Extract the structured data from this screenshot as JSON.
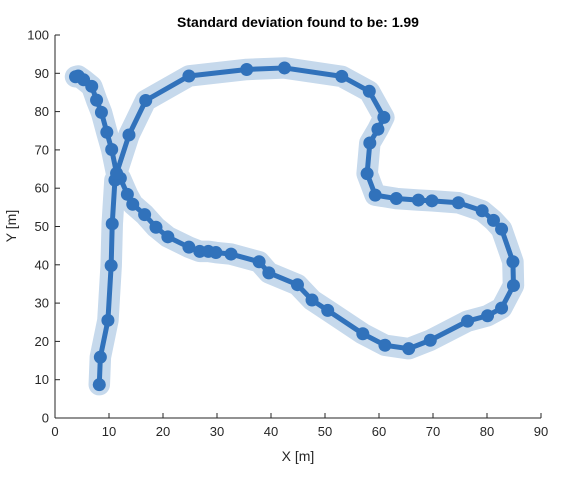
{
  "chart_data": {
    "type": "line",
    "title": "Standard deviation found to be: 1.99",
    "xlabel": "X [m]",
    "ylabel": "Y [m]",
    "xlim": [
      0,
      90
    ],
    "ylim": [
      0,
      100
    ],
    "xticks": [
      0,
      10,
      20,
      30,
      40,
      50,
      60,
      70,
      80,
      90
    ],
    "yticks": [
      0,
      10,
      20,
      30,
      40,
      50,
      60,
      70,
      80,
      90,
      100
    ],
    "grid": false,
    "band_halfwidth": 1.99,
    "colors": {
      "line": "#3172BB",
      "band": "#C6D9EC",
      "axis": "#262626"
    },
    "series": [
      {
        "x": [
          8.2,
          8.4,
          9.8,
          10.4,
          10.6,
          11.1,
          12.1,
          13.4,
          14.4,
          16.6,
          18.7,
          20.9,
          24.8,
          26.8,
          28.4,
          29.8,
          32.6,
          37.8,
          39.6,
          44.9,
          47.6,
          50.5,
          57.0,
          61.1,
          65.5,
          69.5,
          76.4,
          80.1,
          82.7,
          84.9,
          84.8,
          82.7,
          81.2,
          79.1,
          74.7,
          69.8,
          67.3,
          63.2,
          59.3,
          57.8,
          58.3,
          59.8,
          60.9,
          58.2,
          53.1,
          42.5,
          35.5,
          24.8,
          16.8,
          13.7,
          11.4,
          10.5,
          9.6,
          8.6,
          7.7,
          6.8,
          5.3,
          4.3,
          3.8
        ],
        "y": [
          8.7,
          15.9,
          25.5,
          39.8,
          50.7,
          62.1,
          62.6,
          58.4,
          55.8,
          53.1,
          49.8,
          47.3,
          44.6,
          43.5,
          43.5,
          43.2,
          42.8,
          40.8,
          37.9,
          34.8,
          30.8,
          28.1,
          22.0,
          19.0,
          18.1,
          20.3,
          25.3,
          26.7,
          28.7,
          34.6,
          40.8,
          49.3,
          51.6,
          54.1,
          56.2,
          56.7,
          56.9,
          57.3,
          58.2,
          63.8,
          71.8,
          75.4,
          78.5,
          85.3,
          89.2,
          91.4,
          91.0,
          89.3,
          82.9,
          73.9,
          63.9,
          70.1,
          74.6,
          79.8,
          83.0,
          86.6,
          88.3,
          89.3,
          89.1
        ]
      }
    ]
  }
}
